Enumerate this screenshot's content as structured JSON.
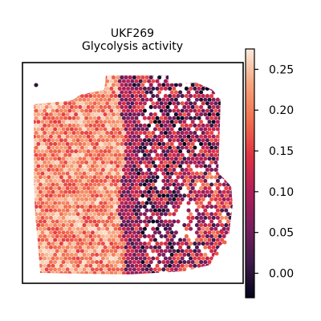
{
  "chart_data": {
    "type": "heatmap",
    "subtype": "spatial-hexbin",
    "title": "UKF269",
    "subtitle": "Glycolysis activity",
    "xlabel": "",
    "ylabel": "",
    "grid": false,
    "colormap": "rocket",
    "colorbar": {
      "placement": "right",
      "range": [
        -0.03,
        0.275
      ],
      "ticks": [
        0.0,
        0.05,
        0.1,
        0.15,
        0.2,
        0.25
      ],
      "tick_labels": [
        "0.00",
        "0.05",
        "0.10",
        "0.15",
        "0.20",
        "0.25"
      ],
      "colors": [
        "#03051a",
        "#3e1a4a",
        "#7a1e5c",
        "#b21e58",
        "#e13342",
        "#f3704f",
        "#f6a47c",
        "#faebdd"
      ]
    },
    "regions": [
      {
        "name": "left tissue region",
        "value_range": [
          0.15,
          0.27
        ]
      },
      {
        "name": "right tissue region",
        "value_range": [
          -0.03,
          0.15
        ]
      }
    ]
  }
}
